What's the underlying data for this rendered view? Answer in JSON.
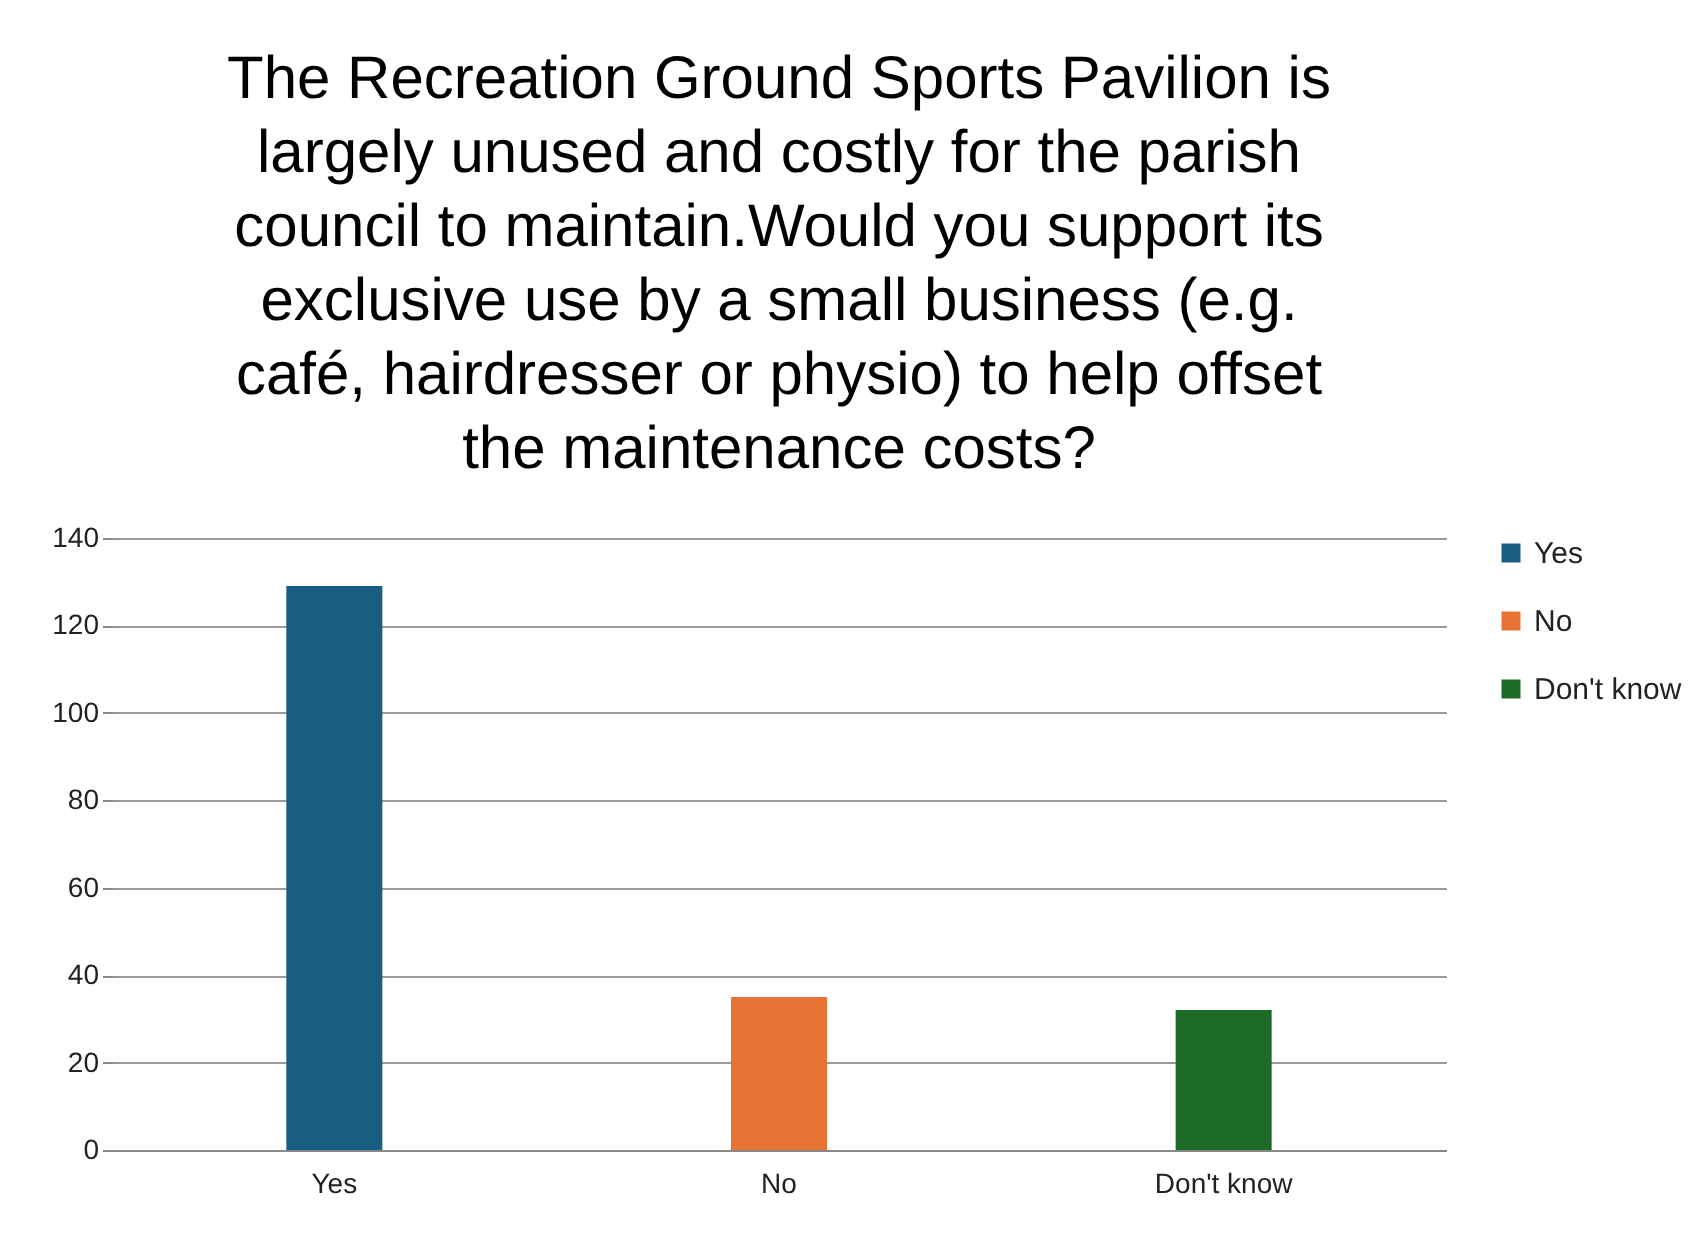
{
  "chart_data": {
    "type": "bar",
    "title": "The Recreation Ground Sports Pavilion is largely unused and costly for the parish council to maintain.Would you support its exclusive use by a small business (e.g. café, hairdresser or physio) to help offset the maintenance costs?",
    "categories": [
      "Yes",
      "No",
      "Don't know"
    ],
    "series": [
      {
        "name": "Yes",
        "color": "#175e82",
        "values": [
          129,
          null,
          null
        ]
      },
      {
        "name": "No",
        "color": "#e87234",
        "values": [
          null,
          35,
          null
        ]
      },
      {
        "name": "Don't know",
        "color": "#1e6b25",
        "values": [
          null,
          null,
          32
        ]
      }
    ],
    "ylim": [
      0,
      140
    ],
    "yticks": [
      0,
      20,
      40,
      60,
      80,
      100,
      120,
      140
    ],
    "grid": "y",
    "legend": "right"
  }
}
